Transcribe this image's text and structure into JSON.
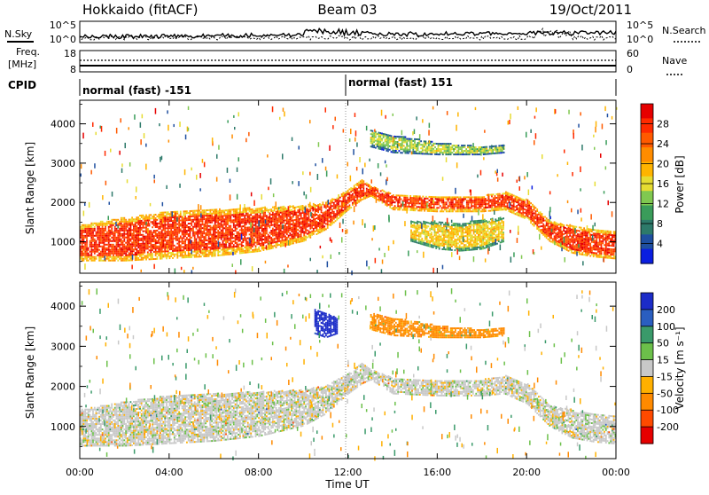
{
  "header": {
    "radar": "Hokkaido (fitACF)",
    "beam": "Beam 03",
    "date": "19/Oct/2011"
  },
  "strip": {
    "nsky_label": "N.Sky",
    "nsearch_label": "N.Search",
    "noise_ticks": [
      "10^5",
      "10^0"
    ],
    "freq_label_1": "Freq.",
    "freq_label_2": "[MHz]",
    "freq_ticks": [
      "18",
      "8"
    ],
    "nave_label": "Nave",
    "nave_ticks": [
      "60",
      "0"
    ],
    "cpid_label": "CPID",
    "cpid_modes": [
      "normal (fast) -151",
      "normal (fast) 151"
    ]
  },
  "axes": {
    "xlabel": "Time UT",
    "x_ticks": [
      "00:00",
      "04:00",
      "08:00",
      "12:00",
      "16:00",
      "20:00",
      "00:00"
    ],
    "ylabel_main": "Slant Range [km]",
    "y_ticks": [
      "1000",
      "2000",
      "3000",
      "4000"
    ]
  },
  "colorbars": {
    "power_label": "Power [dB]",
    "power_ticks": [
      "28",
      "24",
      "20",
      "16",
      "12",
      "8",
      "4"
    ],
    "power_colors": [
      "#e60000",
      "#ff2a00",
      "#ff5a00",
      "#ff8c00",
      "#ffb400",
      "#e6dc32",
      "#80c850",
      "#3a9c5a",
      "#2d7a6a",
      "#1f4fa0",
      "#0a1ee0"
    ],
    "velocity_label": "Velocity [m s⁻¹]",
    "velocity_ticks": [
      "200",
      "100",
      "50",
      "15",
      "-15",
      "-50",
      "-100",
      "-200"
    ],
    "velocity_colors": [
      "#1c2cc8",
      "#2a5ec0",
      "#3a9a6a",
      "#6cc04a",
      "#c8c8c8",
      "#ffb000",
      "#ff8a00",
      "#ff4a00",
      "#e60000"
    ]
  },
  "chart_data": [
    {
      "type": "heatmap",
      "title": "Power",
      "xlabel": "Time UT",
      "ylabel": "Slant Range [km]",
      "xlim": [
        0,
        24
      ],
      "ylim": [
        200,
        4600
      ],
      "colorbar": {
        "label": "Power [dB]",
        "ticks": [
          28,
          24,
          20,
          16,
          12,
          8,
          4
        ]
      },
      "echo_bands": [
        {
          "t": [
            0,
            2,
            4,
            6,
            8,
            10,
            11,
            12,
            12.6,
            13,
            14,
            16,
            18,
            19,
            20,
            21,
            22,
            23,
            24
          ],
          "low": [
            500,
            500,
            560,
            620,
            740,
            1000,
            1300,
            1800,
            2050,
            2150,
            1800,
            1750,
            1750,
            1800,
            1550,
            1000,
            700,
            600,
            550
          ],
          "high": [
            1400,
            1600,
            1750,
            1800,
            1850,
            1900,
            2000,
            2300,
            2550,
            2400,
            2200,
            2150,
            2150,
            2250,
            2050,
            1500,
            1400,
            1300,
            1250
          ],
          "power": 27
        },
        {
          "t": [
            13,
            14,
            16,
            18,
            19
          ],
          "low": [
            3400,
            3250,
            3200,
            3200,
            3250
          ],
          "high": [
            3850,
            3700,
            3500,
            3400,
            3450
          ],
          "power": 15
        },
        {
          "t": [
            14.8,
            16,
            17,
            18,
            19
          ],
          "low": [
            1000,
            800,
            750,
            800,
            1000
          ],
          "high": [
            1500,
            1500,
            1450,
            1550,
            1600
          ],
          "power": 18
        }
      ]
    },
    {
      "type": "heatmap",
      "title": "Velocity",
      "xlabel": "Time UT",
      "ylabel": "Slant Range [km]",
      "xlim": [
        0,
        24
      ],
      "ylim": [
        200,
        4600
      ],
      "colorbar": {
        "label": "Velocity [m s-1]",
        "ticks": [
          200,
          100,
          50,
          15,
          -15,
          -50,
          -100,
          -200
        ]
      },
      "echo_bands": [
        {
          "t": [
            0,
            2,
            4,
            6,
            8,
            10,
            11,
            12,
            12.6,
            13,
            14,
            16,
            18,
            19,
            20,
            21,
            22,
            23,
            24
          ],
          "low": [
            500,
            500,
            560,
            620,
            740,
            1000,
            1300,
            1800,
            2050,
            2150,
            1800,
            1750,
            1750,
            1800,
            1550,
            1000,
            700,
            600,
            550
          ],
          "high": [
            1400,
            1600,
            1750,
            1800,
            1850,
            1900,
            2000,
            2300,
            2550,
            2400,
            2200,
            2150,
            2150,
            2250,
            2050,
            1500,
            1400,
            1300,
            1250
          ],
          "velocity": 0
        },
        {
          "t": [
            13,
            14,
            16,
            18,
            19
          ],
          "low": [
            3400,
            3250,
            3200,
            3200,
            3250
          ],
          "high": [
            3850,
            3700,
            3500,
            3400,
            3450
          ],
          "velocity": -40
        },
        {
          "t": [
            10.5,
            11,
            11.5
          ],
          "low": [
            3300,
            3200,
            3300
          ],
          "high": [
            3900,
            3800,
            3700
          ],
          "velocity": 180
        }
      ]
    }
  ]
}
